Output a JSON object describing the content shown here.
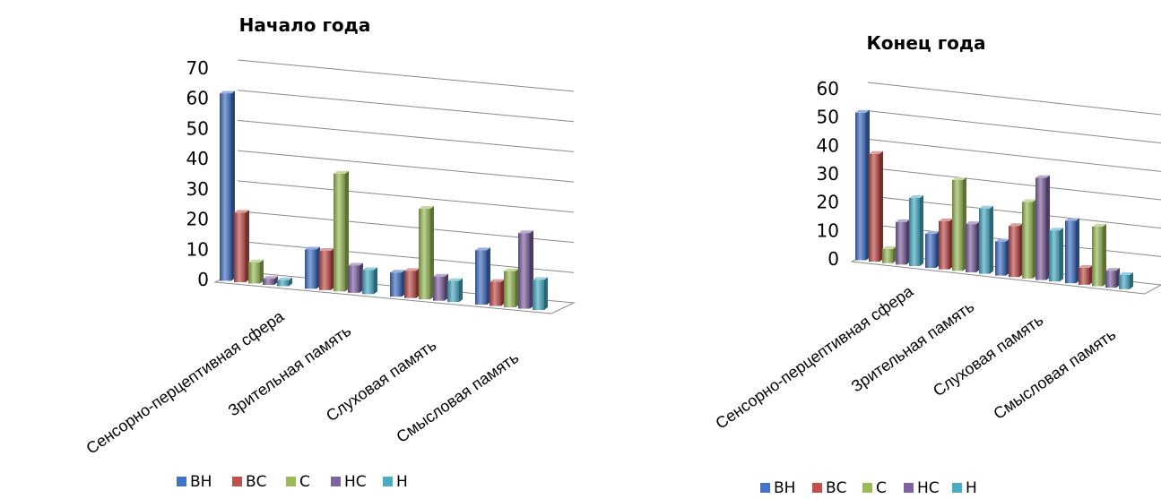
{
  "colors": {
    "ВН": "#4472C4",
    "ВС": "#C0504D",
    "С": "#9BBB59",
    "НС": "#8064A2",
    "Н": "#4BACC6"
  },
  "chart_data": [
    {
      "type": "bar",
      "title": "Начало года",
      "categories": [
        "Сенсорно-перцептивная сфера",
        "Зрительная память",
        "Слуховая память",
        "Смысловая память"
      ],
      "yticks": [
        "0",
        "10",
        "20",
        "30",
        "40",
        "50",
        "60",
        "70"
      ],
      "ylim": [
        0,
        70
      ],
      "grid": true,
      "legend_position": "bottom",
      "series": [
        {
          "name": "ВН",
          "values": [
            62,
            13,
            8,
            18
          ]
        },
        {
          "name": "ВС",
          "values": [
            23,
            13,
            9,
            8
          ]
        },
        {
          "name": "С",
          "values": [
            7,
            39,
            30,
            12
          ]
        },
        {
          "name": "НС",
          "values": [
            2,
            9,
            8,
            25
          ]
        },
        {
          "name": "Н",
          "values": [
            2,
            8,
            7,
            10
          ]
        }
      ]
    },
    {
      "type": "bar",
      "title": "Конец года",
      "categories": [
        "Сенсорно-перцептивная сфера",
        "Зрительная память",
        "Слуховая память",
        "Смысловая память"
      ],
      "yticks": [
        "0",
        "10",
        "20",
        "30",
        "40",
        "50",
        "60"
      ],
      "ylim": [
        0,
        60
      ],
      "grid": true,
      "legend_position": "bottom",
      "series": [
        {
          "name": "ВН",
          "values": [
            52,
            12,
            12,
            22
          ]
        },
        {
          "name": "ВС",
          "values": [
            38,
            17,
            18,
            6
          ]
        },
        {
          "name": "С",
          "values": [
            5,
            32,
            27,
            21
          ]
        },
        {
          "name": "НС",
          "values": [
            15,
            17,
            36,
            6
          ]
        },
        {
          "name": "Н",
          "values": [
            24,
            23,
            18,
            5
          ]
        }
      ]
    }
  ]
}
